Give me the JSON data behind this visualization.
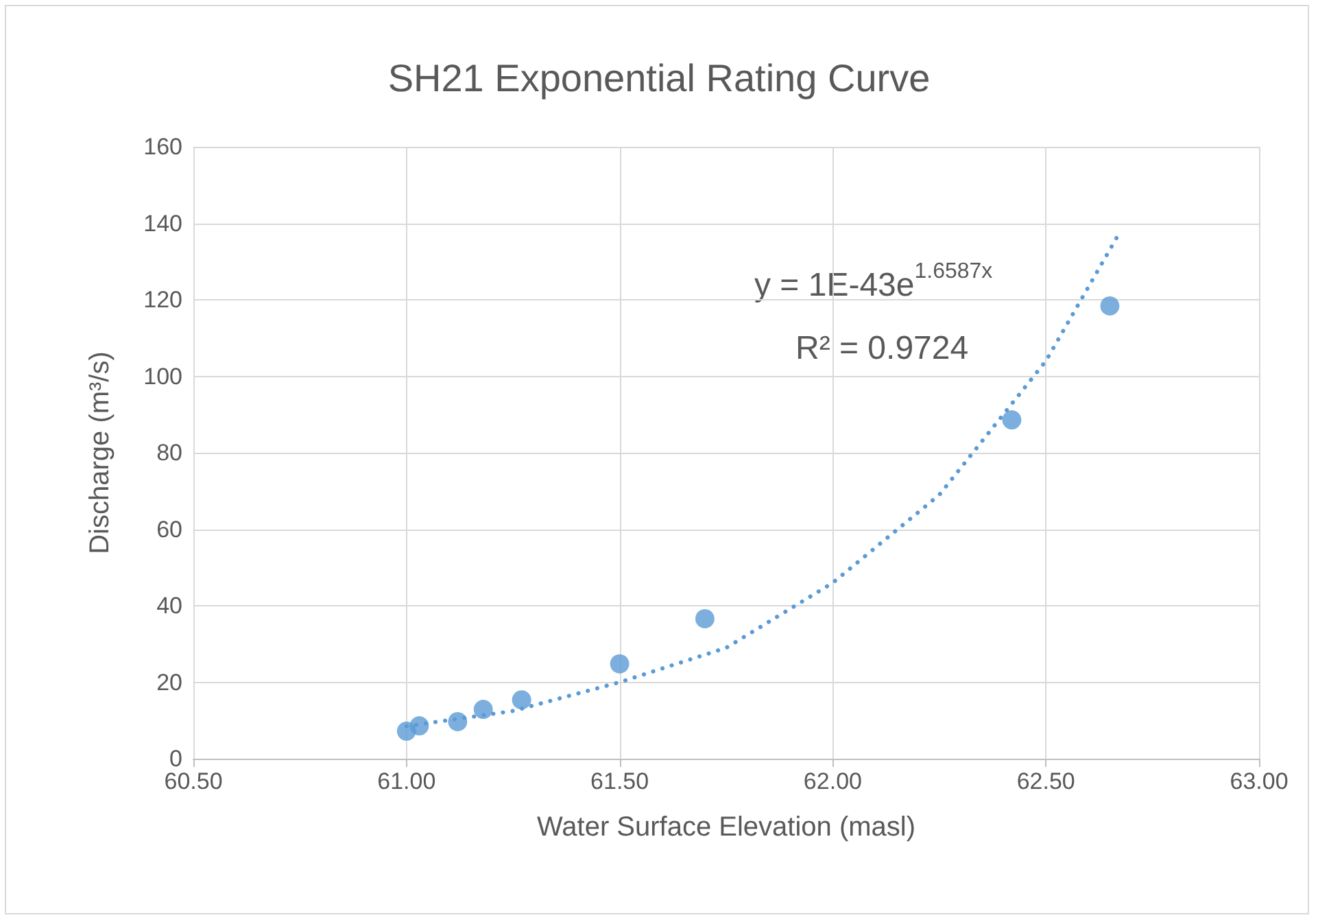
{
  "chart_data": {
    "type": "scatter",
    "title": "SH21 Exponential Rating Curve",
    "xlabel": "Water Surface Elevation (masl)",
    "ylabel": "Discharge (m³/s)",
    "series": [
      {
        "color": "#5b9bd5",
        "marker": "circle",
        "x": [
          61.0,
          61.03,
          61.12,
          61.18,
          61.27,
          61.5,
          61.7,
          62.42,
          62.65
        ],
        "values": [
          7.2,
          8.6,
          9.7,
          12.9,
          15.4,
          24.8,
          36.6,
          88.6,
          118.4
        ]
      },
      {
        "type": "line",
        "color": "#5b9bd5",
        "marker": "none",
        "line_style": "dotted",
        "x": [
          61.0,
          61.25,
          61.5,
          61.75,
          62.0,
          62.25,
          62.5,
          62.67
        ],
        "values": [
          8.5,
          12.5,
          20,
          29,
          46,
          69,
          104,
          137
        ]
      }
    ],
    "annotations": [
      "y = 1E-43e$^{1.6587x}$",
      "R² = 0.9724"
    ],
    "xlim": [
      60.5,
      63.0
    ],
    "xticks": [
      {
        "value": 60.5,
        "label": "60.50"
      },
      {
        "value": 61.0,
        "label": "61.00"
      },
      {
        "value": 61.5,
        "label": "61.50"
      },
      {
        "value": 62.0,
        "label": "62.00"
      },
      {
        "value": 62.5,
        "label": "62.50"
      },
      {
        "value": 63.0,
        "label": "63.00"
      }
    ],
    "ylim": [
      0,
      160
    ],
    "yticks": [
      0,
      20,
      40,
      60,
      80,
      100,
      120,
      140,
      160
    ],
    "grid": true
  }
}
